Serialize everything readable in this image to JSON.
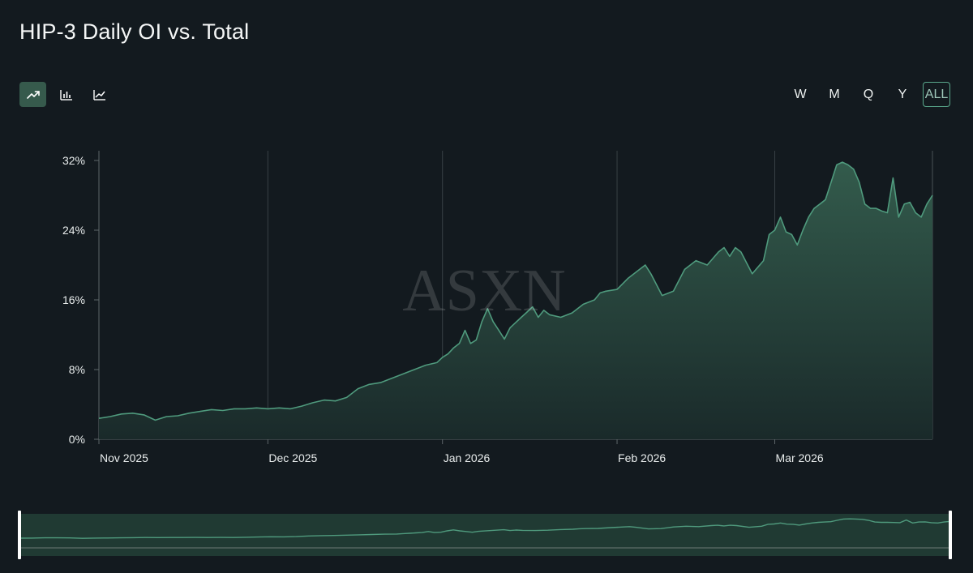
{
  "header": {
    "title": "HIP-3 Daily OI vs. Total"
  },
  "chart_types": [
    {
      "name": "area",
      "icon": "trend-up-icon",
      "active": true
    },
    {
      "name": "bar",
      "icon": "bar-chart-icon",
      "active": false
    },
    {
      "name": "line",
      "icon": "line-chart-icon",
      "active": false
    }
  ],
  "range_buttons": [
    {
      "label": "W",
      "active": false
    },
    {
      "label": "M",
      "active": false
    },
    {
      "label": "Q",
      "active": false
    },
    {
      "label": "Y",
      "active": false
    },
    {
      "label": "ALL",
      "active": true
    }
  ],
  "watermark": "ASXN",
  "colors": {
    "background": "#131a1f",
    "line": "#4f9a7d",
    "accent": "#5aa88c",
    "area": "#2f5446"
  },
  "chart_data": {
    "type": "area",
    "title": "HIP-3 Daily OI vs. Total",
    "xlabel": "",
    "ylabel": "",
    "ylim": [
      0,
      32
    ],
    "yticks": [
      0,
      8,
      16,
      24,
      32
    ],
    "ytick_labels": [
      "0%",
      "8%",
      "16%",
      "24%",
      "32%"
    ],
    "xticks": [
      "Nov 2025",
      "Dec 2025",
      "Jan 2026",
      "Feb 2026",
      "Mar 2026"
    ],
    "xtick_days": [
      0,
      30,
      61,
      92,
      120
    ],
    "xlim_days": [
      0,
      148
    ],
    "grid": "vertical",
    "series": [
      {
        "x_days": [
          0,
          2,
          4,
          6,
          8,
          10,
          12,
          14,
          16,
          18,
          20,
          22,
          24,
          26,
          28,
          30,
          32,
          34,
          36,
          38,
          40,
          42,
          44,
          46,
          48,
          50,
          52,
          54,
          56,
          58,
          60,
          61,
          62,
          63,
          64,
          65,
          66,
          67,
          68,
          69,
          70,
          71,
          72,
          73,
          74,
          75,
          76,
          77,
          78,
          79,
          80,
          82,
          84,
          86,
          88,
          89,
          90,
          92,
          94,
          96,
          97,
          98,
          100,
          102,
          104,
          106,
          108,
          110,
          111,
          112,
          113,
          114,
          116,
          118,
          119,
          120,
          121,
          122,
          123,
          124,
          125,
          126,
          127,
          128,
          129,
          130,
          131,
          132,
          133,
          134,
          135,
          136,
          137,
          138,
          139,
          140,
          141,
          142,
          143,
          144,
          145,
          146,
          147,
          148
        ],
        "values": [
          2.4,
          2.6,
          2.9,
          3.0,
          2.8,
          2.2,
          2.6,
          2.7,
          3.0,
          3.2,
          3.4,
          3.3,
          3.5,
          3.5,
          3.6,
          3.5,
          3.6,
          3.5,
          3.8,
          4.2,
          4.5,
          4.4,
          4.8,
          5.8,
          6.3,
          6.5,
          7.0,
          7.5,
          8.0,
          8.5,
          8.8,
          9.4,
          9.8,
          10.5,
          11.0,
          12.5,
          11.0,
          11.4,
          13.5,
          15.0,
          13.5,
          12.5,
          11.5,
          12.8,
          13.4,
          14.0,
          14.6,
          15.2,
          14.0,
          14.8,
          14.3,
          14.0,
          14.5,
          15.5,
          16.0,
          16.8,
          17.0,
          17.2,
          18.5,
          19.5,
          20.0,
          19.0,
          16.5,
          17.0,
          19.5,
          20.5,
          20.0,
          21.5,
          22.0,
          21.0,
          22.0,
          21.5,
          19.0,
          20.5,
          23.5,
          24.0,
          25.5,
          23.8,
          23.5,
          22.3,
          24.0,
          25.5,
          26.5,
          27.0,
          27.5,
          29.5,
          31.5,
          31.8,
          31.5,
          31.0,
          29.5,
          27.0,
          26.5,
          26.5,
          26.2,
          26.0,
          30.0,
          25.5,
          27.0,
          27.2,
          26.0,
          25.5,
          27.0,
          28.0
        ]
      }
    ]
  }
}
